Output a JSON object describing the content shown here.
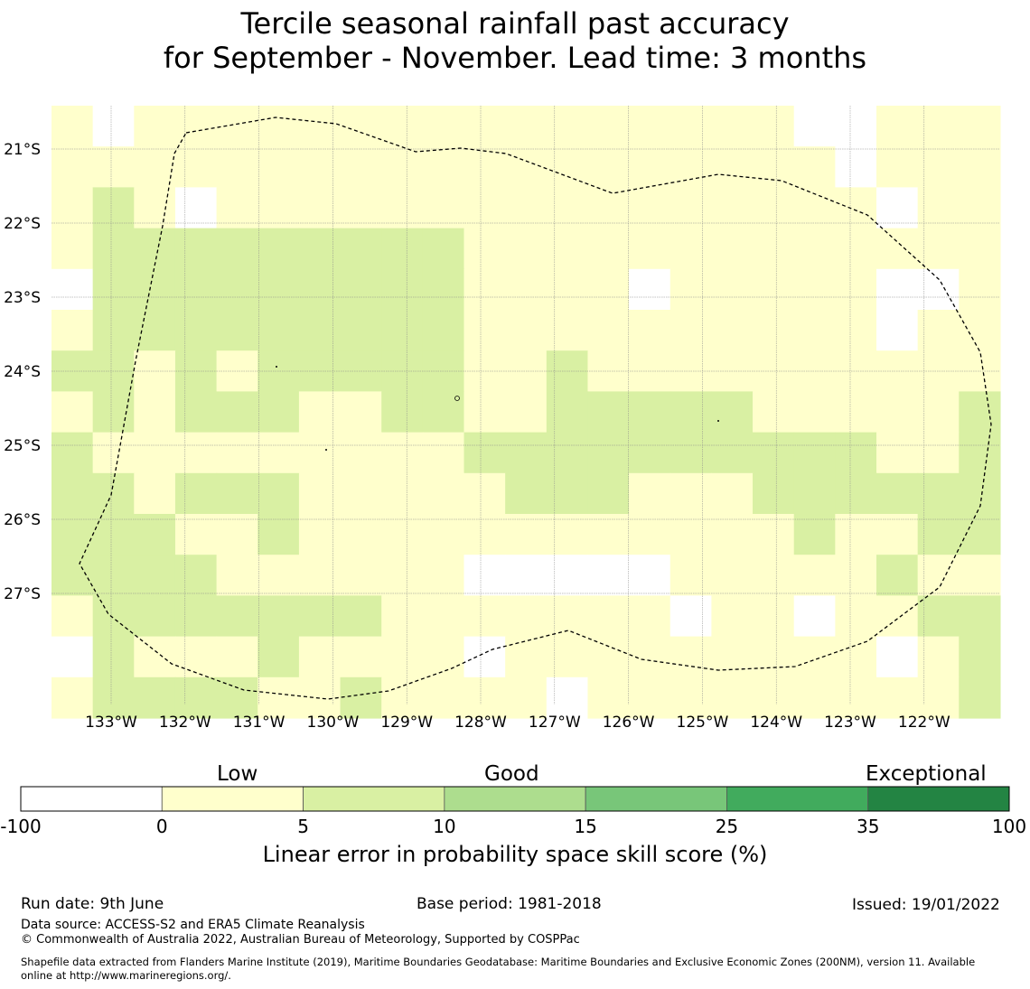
{
  "title": {
    "line1": "Tercile seasonal rainfall past accuracy",
    "line2": "for September - November. Lead time: 3 months"
  },
  "map": {
    "lat_labels": [
      "21°S",
      "22°S",
      "23°S",
      "24°S",
      "25°S",
      "26°S",
      "27°S"
    ],
    "lat_values": [
      -21,
      -22,
      -23,
      -24,
      -25,
      -26,
      -27
    ],
    "lon_labels": [
      "133°W",
      "132°W",
      "131°W",
      "130°W",
      "129°W",
      "128°W",
      "127°W",
      "126°W",
      "125°W",
      "124°W",
      "123°W",
      "122°W"
    ],
    "lon_values": [
      -133,
      -132,
      -131,
      -130,
      -129,
      -128,
      -127,
      -126,
      -125,
      -124,
      -123,
      -122
    ],
    "grid": {
      "legend": "0 = below 0 (white), 1 = 0-5 (light yellow), 2 = 5-10 (light green)",
      "cols": 23,
      "rows": 15,
      "cells": [
        [
          1,
          0,
          1,
          1,
          1,
          1,
          1,
          1,
          1,
          1,
          1,
          1,
          1,
          1,
          1,
          1,
          1,
          1,
          0,
          0,
          1,
          1,
          1
        ],
        [
          1,
          1,
          1,
          1,
          1,
          1,
          1,
          1,
          1,
          1,
          1,
          1,
          1,
          1,
          1,
          1,
          1,
          1,
          1,
          0,
          1,
          1,
          1
        ],
        [
          1,
          2,
          1,
          0,
          1,
          1,
          1,
          1,
          1,
          1,
          1,
          1,
          1,
          1,
          1,
          1,
          1,
          1,
          1,
          1,
          0,
          1,
          1
        ],
        [
          1,
          2,
          2,
          2,
          2,
          2,
          2,
          2,
          2,
          2,
          1,
          1,
          1,
          1,
          1,
          1,
          1,
          1,
          1,
          1,
          1,
          1,
          1
        ],
        [
          0,
          2,
          2,
          2,
          2,
          2,
          2,
          2,
          2,
          2,
          1,
          1,
          1,
          1,
          0,
          1,
          1,
          1,
          1,
          1,
          0,
          0,
          1
        ],
        [
          1,
          2,
          2,
          2,
          2,
          2,
          2,
          2,
          2,
          2,
          1,
          1,
          1,
          1,
          1,
          1,
          1,
          1,
          1,
          1,
          0,
          1,
          1
        ],
        [
          2,
          2,
          1,
          2,
          1,
          2,
          2,
          2,
          2,
          2,
          1,
          1,
          2,
          1,
          1,
          1,
          1,
          1,
          1,
          1,
          1,
          1,
          1
        ],
        [
          1,
          2,
          1,
          2,
          2,
          2,
          1,
          1,
          2,
          2,
          1,
          1,
          2,
          2,
          2,
          2,
          2,
          1,
          1,
          1,
          1,
          1,
          2
        ],
        [
          2,
          1,
          1,
          1,
          1,
          1,
          1,
          1,
          1,
          1,
          2,
          2,
          2,
          2,
          2,
          2,
          2,
          2,
          2,
          2,
          1,
          1,
          2
        ],
        [
          2,
          2,
          1,
          2,
          2,
          2,
          1,
          1,
          1,
          1,
          1,
          2,
          2,
          2,
          1,
          1,
          1,
          2,
          2,
          2,
          2,
          2,
          2
        ],
        [
          2,
          2,
          2,
          1,
          1,
          2,
          1,
          1,
          1,
          1,
          1,
          1,
          1,
          1,
          1,
          1,
          1,
          1,
          2,
          1,
          1,
          2,
          2
        ],
        [
          2,
          2,
          2,
          2,
          1,
          1,
          1,
          1,
          1,
          1,
          0,
          0,
          0,
          0,
          0,
          1,
          1,
          1,
          1,
          1,
          2,
          1,
          1
        ],
        [
          1,
          2,
          2,
          2,
          2,
          2,
          2,
          2,
          1,
          1,
          1,
          1,
          1,
          1,
          1,
          0,
          1,
          1,
          0,
          1,
          1,
          2,
          2
        ],
        [
          0,
          2,
          1,
          1,
          1,
          2,
          1,
          1,
          1,
          1,
          0,
          1,
          1,
          1,
          1,
          1,
          1,
          1,
          1,
          1,
          0,
          1,
          2
        ],
        [
          1,
          2,
          2,
          2,
          2,
          1,
          1,
          2,
          1,
          1,
          1,
          1,
          0,
          1,
          1,
          1,
          1,
          1,
          1,
          1,
          1,
          1,
          2
        ]
      ]
    }
  },
  "colorbar": {
    "categories": [
      "Low",
      "Good",
      "Exceptional"
    ],
    "ticks": [
      "-100",
      "0",
      "5",
      "10",
      "15",
      "25",
      "35",
      "100"
    ],
    "colors": [
      "#ffffff",
      "#ffffcc",
      "#d9f0a3",
      "#addd8e",
      "#78c679",
      "#41ab5d",
      "#238443"
    ],
    "label": "Linear error in probability space skill score (%)"
  },
  "footer": {
    "run_date": "Run date: 9th June",
    "base_period": "Base period: 1981-2018",
    "issued": "Issued: 19/01/2022",
    "data_source": "Data source: ACCESS-S2 and ERA5 Climate Reanalysis",
    "copyright": "© Commonwealth of Australia 2022, Australian Bureau of Meteorology, Supported by COSPPac",
    "shapefile_line1": "Shapefile data extracted from Flanders Marine Institute (2019), Maritime Boundaries Geodatabase: Maritime Boundaries and Exclusive Economic Zones (200NM), version 11. Available",
    "shapefile_line2": "online at http://www.marineregions.org/."
  }
}
